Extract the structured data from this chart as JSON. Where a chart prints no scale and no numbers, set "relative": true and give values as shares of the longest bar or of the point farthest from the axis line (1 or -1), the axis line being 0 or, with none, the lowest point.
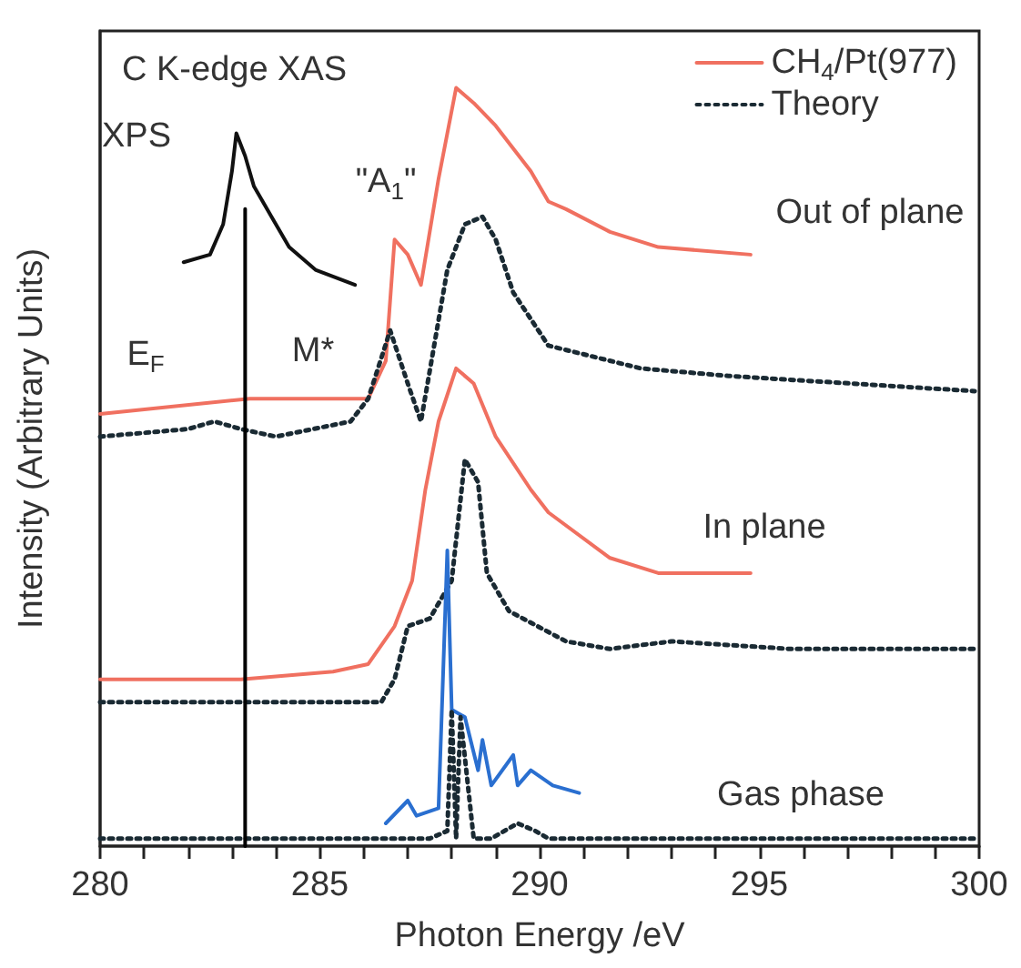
{
  "chart_data": {
    "type": "line",
    "title": "C K-edge XAS",
    "xlabel": "Photon Energy /eV",
    "ylabel": "Intensity (Arbitrary Units)",
    "relative": true,
    "marker": "none",
    "legend": "top right",
    "grid": false,
    "xlim": [
      280,
      300
    ],
    "xticks": [
      280,
      {
        "value": 281,
        "label": null
      },
      {
        "value": 282,
        "label": null
      },
      {
        "value": 283,
        "label": null
      },
      {
        "value": 284,
        "label": null
      },
      285,
      {
        "value": 286,
        "label": null
      },
      {
        "value": 287,
        "label": null
      },
      {
        "value": 288,
        "label": null
      },
      {
        "value": 289,
        "label": null
      },
      290,
      {
        "value": 291,
        "label": null
      },
      {
        "value": 292,
        "label": null
      },
      {
        "value": 293,
        "label": null
      },
      {
        "value": 294,
        "label": null
      },
      295,
      {
        "value": 296,
        "label": null
      },
      {
        "value": 297,
        "label": null
      },
      {
        "value": 298,
        "label": null
      },
      {
        "value": 299,
        "label": null
      },
      300
    ],
    "series": [
      {
        "name": "CH$_{4}$/Pt(977)",
        "color": "#f07060",
        "line_style": "solid",
        "x": [
          280,
          283.4,
          286.1,
          286.5,
          286.7,
          287,
          287.3,
          287.7,
          288.1,
          288.5,
          289,
          289.8,
          290.2,
          290.6,
          291.6,
          292.7,
          294.8
        ],
        "values": [
          0.57,
          0.59,
          0.59,
          0.64,
          0.8,
          0.78,
          0.74,
          0.88,
          1,
          0.98,
          0.95,
          0.89,
          0.85,
          0.84,
          0.81,
          0.79,
          0.78
        ]
      },
      {
        "name": "Theory",
        "color": "#1a2a33",
        "line_style": "dotted",
        "x": [
          280,
          282,
          282.6,
          283.2,
          284,
          285.7,
          286.1,
          286.6,
          287,
          287.3,
          287.9,
          288.3,
          288.7,
          289,
          289.4,
          290.2,
          292.3,
          294.3,
          299.9
        ],
        "values": [
          0.54,
          0.55,
          0.56,
          0.55,
          0.54,
          0.56,
          0.59,
          0.68,
          0.61,
          0.56,
          0.76,
          0.82,
          0.83,
          0.8,
          0.73,
          0.66,
          0.63,
          0.62,
          0.6
        ]
      },
      {
        "color": "#f07060",
        "line_style": "solid",
        "x": [
          280,
          283.2,
          285.3,
          286.1,
          286.7,
          287.1,
          287.4,
          287.7,
          288.1,
          288.5,
          289,
          289.8,
          290.2,
          291.6,
          292.7,
          294.8
        ],
        "values": [
          0.22,
          0.22,
          0.23,
          0.24,
          0.29,
          0.35,
          0.47,
          0.56,
          0.63,
          0.61,
          0.54,
          0.47,
          0.44,
          0.38,
          0.36,
          0.36
        ]
      },
      {
        "color": "#1a2a33",
        "line_style": "dotted",
        "x": [
          280,
          286.4,
          286.7,
          287,
          287.5,
          288,
          288.3,
          288.6,
          288.8,
          289.3,
          290.6,
          291.6,
          293,
          295.7,
          299.9
        ],
        "values": [
          0.19,
          0.19,
          0.22,
          0.29,
          0.3,
          0.35,
          0.51,
          0.48,
          0.36,
          0.31,
          0.27,
          0.26,
          0.27,
          0.26,
          0.26
        ]
      },
      {
        "color": "#2a6fd0",
        "line_style": "solid",
        "x": [
          286.5,
          287,
          287.2,
          287.7,
          287.9,
          288,
          288.3,
          288.6,
          288.7,
          288.9,
          289.4,
          289.5,
          289.8,
          290.3,
          290.9
        ],
        "values": [
          0.03,
          0.06,
          0.04,
          0.05,
          0.39,
          0.18,
          0.17,
          0.1,
          0.14,
          0.08,
          0.12,
          0.08,
          0.1,
          0.08,
          0.07
        ]
      },
      {
        "color": "#1a2a33",
        "line_style": "dotted",
        "x": [
          280,
          287.5,
          287.9,
          288,
          288.1,
          288.2,
          288.5,
          288.9,
          289.5,
          289.9,
          290.2,
          299.9
        ],
        "values": [
          0.01,
          0.01,
          0.02,
          0.18,
          0.01,
          0.17,
          0.01,
          0.01,
          0.03,
          0.02,
          0.01,
          0.01
        ]
      },
      {
        "color": "#111111",
        "line_style": "solid",
        "x": [
          281.9,
          282.5,
          282.8,
          283,
          283.1,
          283.3,
          283.5,
          283.9,
          284.3,
          284.9,
          285.8
        ],
        "values": [
          0.77,
          0.78,
          0.82,
          0.89,
          0.94,
          0.91,
          0.87,
          0.83,
          0.79,
          0.76,
          0.74
        ]
      },
      {
        "color": "#000000",
        "line_style": "solid",
        "x": [
          283.3,
          283.3
        ],
        "values": [
          0,
          0.84
        ]
      }
    ],
    "annotations": [
      "XPS",
      "\"A$_{1}$\"",
      "E$_{F}$",
      "M*",
      "Out of plane",
      "In plane",
      "Gas phase"
    ]
  }
}
